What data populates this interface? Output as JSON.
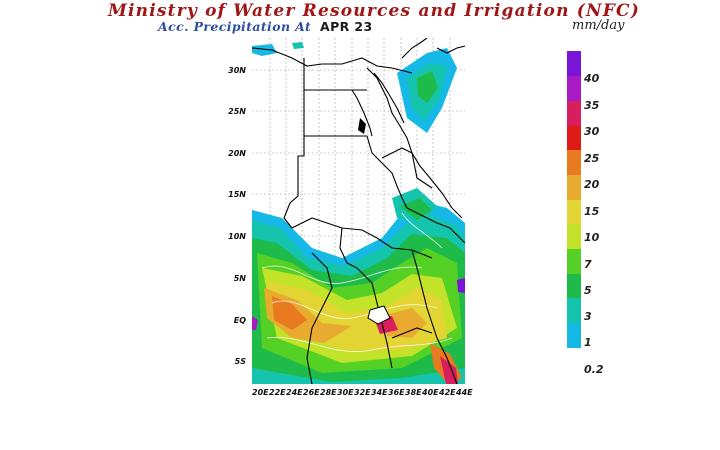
{
  "header": {
    "title": "Ministry of Water Resources and Irrigation (NFC)",
    "subtitle": "Acc. Precipitation  At",
    "date": "APR 23",
    "units": "mm/day"
  },
  "map": {
    "lat_labels": [
      "30N",
      "25N",
      "20N",
      "15N",
      "10N",
      "5N",
      "EQ",
      "5S"
    ],
    "lon_labels": [
      "20E",
      "22E",
      "24E",
      "26E",
      "28E",
      "30E",
      "32E",
      "34E",
      "36E",
      "38E",
      "40E",
      "42E",
      "44E"
    ]
  },
  "legend": {
    "levels": [
      "40",
      "35",
      "30",
      "25",
      "20",
      "15",
      "10",
      "7",
      "5",
      "3",
      "1",
      "0.2"
    ],
    "colors": [
      "#ffffff",
      "#16b9e6",
      "#15c4ac",
      "#1fbb4a",
      "#55d024",
      "#c3e22a",
      "#e3d534",
      "#e8aa2f",
      "#e87a1f",
      "#e01a16",
      "#d81e5c",
      "#a91ac4",
      "#7a14d6"
    ]
  }
}
